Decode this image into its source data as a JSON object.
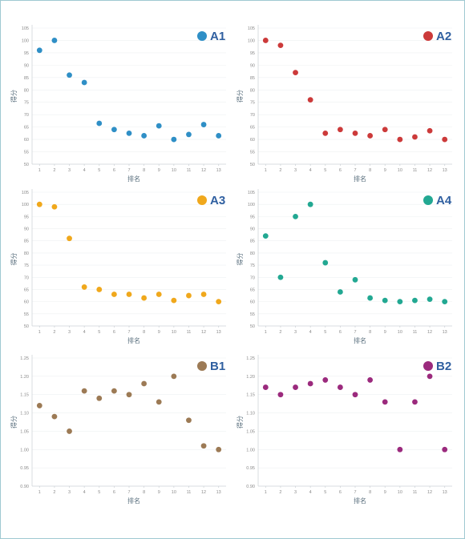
{
  "chart_data": [
    {
      "type": "scatter",
      "legend": "A1",
      "color": "#2f8fc6",
      "x": [
        1,
        2,
        3,
        4,
        5,
        6,
        7,
        8,
        9,
        10,
        11,
        12,
        13
      ],
      "y": [
        96,
        100,
        86,
        83,
        66.5,
        64,
        62.5,
        61.5,
        65.5,
        60,
        62,
        66,
        61.5
      ],
      "xlabel": "排名",
      "ylabel": "得分",
      "ylim": [
        50,
        105
      ],
      "yticks": [
        "105",
        "100",
        "95",
        "90",
        "85",
        "80",
        "75",
        "70",
        "65",
        "60",
        "55",
        "50"
      ],
      "xticks": [
        "1",
        "2",
        "3",
        "4",
        "5",
        "6",
        "7",
        "8",
        "9",
        "10",
        "11",
        "12",
        "13"
      ]
    },
    {
      "type": "scatter",
      "legend": "A2",
      "color": "#cc3a3a",
      "x": [
        1,
        2,
        3,
        4,
        5,
        6,
        7,
        8,
        9,
        10,
        11,
        12,
        13
      ],
      "y": [
        100,
        98,
        87,
        76,
        62.5,
        64,
        62.5,
        61.5,
        64,
        60,
        61,
        63.5,
        60
      ],
      "xlabel": "排名",
      "ylabel": "得分",
      "ylim": [
        50,
        105
      ],
      "yticks": [
        "105",
        "100",
        "95",
        "90",
        "85",
        "80",
        "75",
        "70",
        "65",
        "60",
        "55",
        "50"
      ],
      "xticks": [
        "1",
        "2",
        "3",
        "4",
        "5",
        "6",
        "7",
        "8",
        "9",
        "10",
        "11",
        "12",
        "13"
      ]
    },
    {
      "type": "scatter",
      "legend": "A3",
      "color": "#f0a81c",
      "x": [
        1,
        2,
        3,
        4,
        5,
        6,
        7,
        8,
        9,
        10,
        11,
        12,
        13
      ],
      "y": [
        100,
        99,
        86,
        66,
        65,
        63,
        63,
        61.5,
        63,
        60.5,
        62.5,
        63,
        60
      ],
      "xlabel": "排名",
      "ylabel": "得分",
      "ylim": [
        50,
        105
      ],
      "yticks": [
        "105",
        "100",
        "95",
        "90",
        "85",
        "80",
        "75",
        "70",
        "65",
        "60",
        "55",
        "50"
      ],
      "xticks": [
        "1",
        "2",
        "3",
        "4",
        "5",
        "6",
        "7",
        "8",
        "9",
        "10",
        "11",
        "12",
        "13"
      ]
    },
    {
      "type": "scatter",
      "legend": "A4",
      "color": "#22a892",
      "x": [
        1,
        2,
        3,
        4,
        5,
        6,
        7,
        8,
        9,
        10,
        11,
        12,
        13
      ],
      "y": [
        87,
        70,
        95,
        100,
        76,
        64,
        69,
        61.5,
        60.5,
        60,
        60.5,
        61,
        60
      ],
      "xlabel": "排名",
      "ylabel": "得分",
      "ylim": [
        50,
        105
      ],
      "yticks": [
        "105",
        "100",
        "95",
        "90",
        "85",
        "80",
        "75",
        "70",
        "65",
        "60",
        "55",
        "50"
      ],
      "xticks": [
        "1",
        "2",
        "3",
        "4",
        "5",
        "6",
        "7",
        "8",
        "9",
        "10",
        "11",
        "12",
        "13"
      ]
    },
    {
      "type": "scatter",
      "legend": "B1",
      "color": "#9c7a55",
      "x": [
        1,
        2,
        3,
        4,
        5,
        6,
        7,
        8,
        9,
        10,
        11,
        12,
        13
      ],
      "y": [
        1.12,
        1.09,
        1.05,
        1.16,
        1.14,
        1.16,
        1.15,
        1.18,
        1.13,
        1.2,
        1.08,
        1.01,
        1.0
      ],
      "xlabel": "排名",
      "ylabel": "得分",
      "ylim": [
        0.9,
        1.25
      ],
      "yticks": [
        "1.25",
        "1.20",
        "1.15",
        "1.10",
        "1.05",
        "1.00",
        "0.95",
        "0.90"
      ],
      "xticks": [
        "1",
        "2",
        "3",
        "4",
        "5",
        "6",
        "7",
        "8",
        "9",
        "10",
        "11",
        "12",
        "13"
      ]
    },
    {
      "type": "scatter",
      "legend": "B2",
      "color": "#9b2a7d",
      "x": [
        1,
        2,
        3,
        4,
        5,
        6,
        7,
        8,
        9,
        10,
        11,
        12,
        13
      ],
      "y": [
        1.17,
        1.15,
        1.17,
        1.18,
        1.19,
        1.17,
        1.15,
        1.19,
        1.13,
        1.0,
        1.13,
        1.2,
        1.0
      ],
      "xlabel": "排名",
      "ylabel": "得分",
      "ylim": [
        0.9,
        1.25
      ],
      "yticks": [
        "1.25",
        "1.20",
        "1.15",
        "1.10",
        "1.05",
        "1.00",
        "0.95",
        "0.90"
      ],
      "xticks": [
        "1",
        "2",
        "3",
        "4",
        "5",
        "6",
        "7",
        "8",
        "9",
        "10",
        "11",
        "12",
        "13"
      ]
    }
  ]
}
